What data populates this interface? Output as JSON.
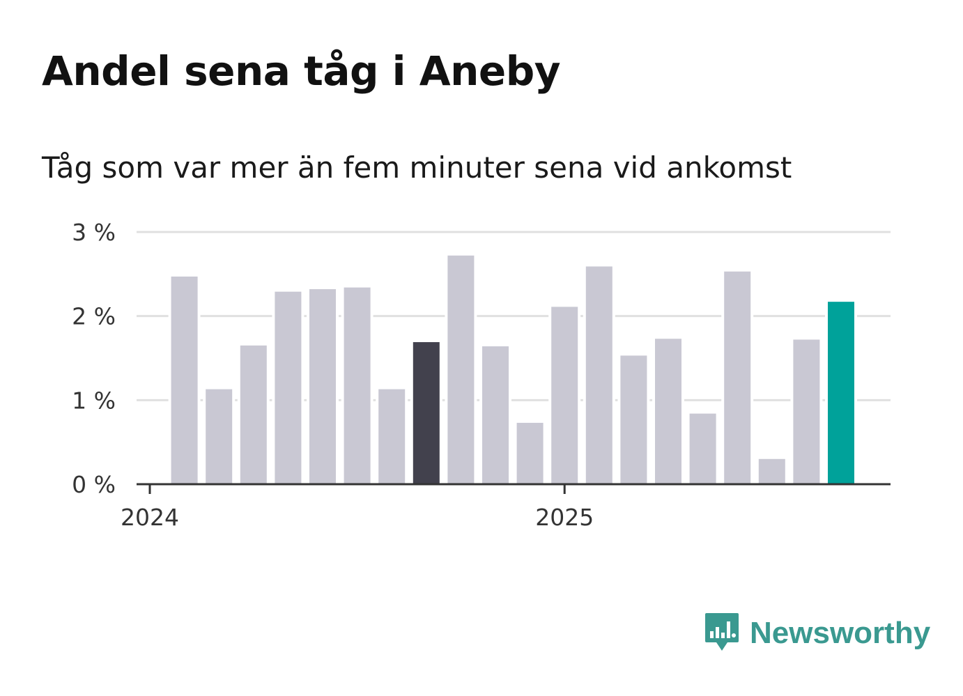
{
  "title": "Andel sena tåg i Aneby",
  "subtitle": "Tåg som var mer än fem minuter sena vid ankomst",
  "brand": {
    "name": "Newsworthy",
    "color": "#3a9990",
    "icon": "newsworthy-logo-icon"
  },
  "colors": {
    "bar": "#c9c8d3",
    "highlight_dark": "#42414d",
    "highlight_accent": "#00a29a",
    "grid": "#e0e0e0",
    "axis": "#333333"
  },
  "chart_data": {
    "type": "bar",
    "x_unit": "month",
    "x": [
      "2024-02",
      "2024-03",
      "2024-04",
      "2024-05",
      "2024-06",
      "2024-07",
      "2024-08",
      "2024-09",
      "2024-10",
      "2024-11",
      "2024-12",
      "2025-01",
      "2025-02",
      "2025-03",
      "2025-04",
      "2025-05",
      "2025-06",
      "2025-07",
      "2025-08",
      "2025-09"
    ],
    "values": [
      2.47,
      1.13,
      1.65,
      2.29,
      2.32,
      2.34,
      1.13,
      1.69,
      2.72,
      1.64,
      0.73,
      2.11,
      2.59,
      1.53,
      1.73,
      0.84,
      2.53,
      0.3,
      1.72,
      2.17
    ],
    "highlight": {
      "2024-09": "dark",
      "2025-09": "accent"
    },
    "ylim": [
      0,
      3
    ],
    "yticks": [
      0,
      1,
      2,
      3
    ],
    "ytick_labels": [
      "0 %",
      "1 %",
      "2 %",
      "3 %"
    ],
    "xticks": [
      {
        "x": "2024-01",
        "label": "2024"
      },
      {
        "x": "2025-01",
        "label": "2025"
      }
    ],
    "grid": true,
    "legend": "none"
  }
}
